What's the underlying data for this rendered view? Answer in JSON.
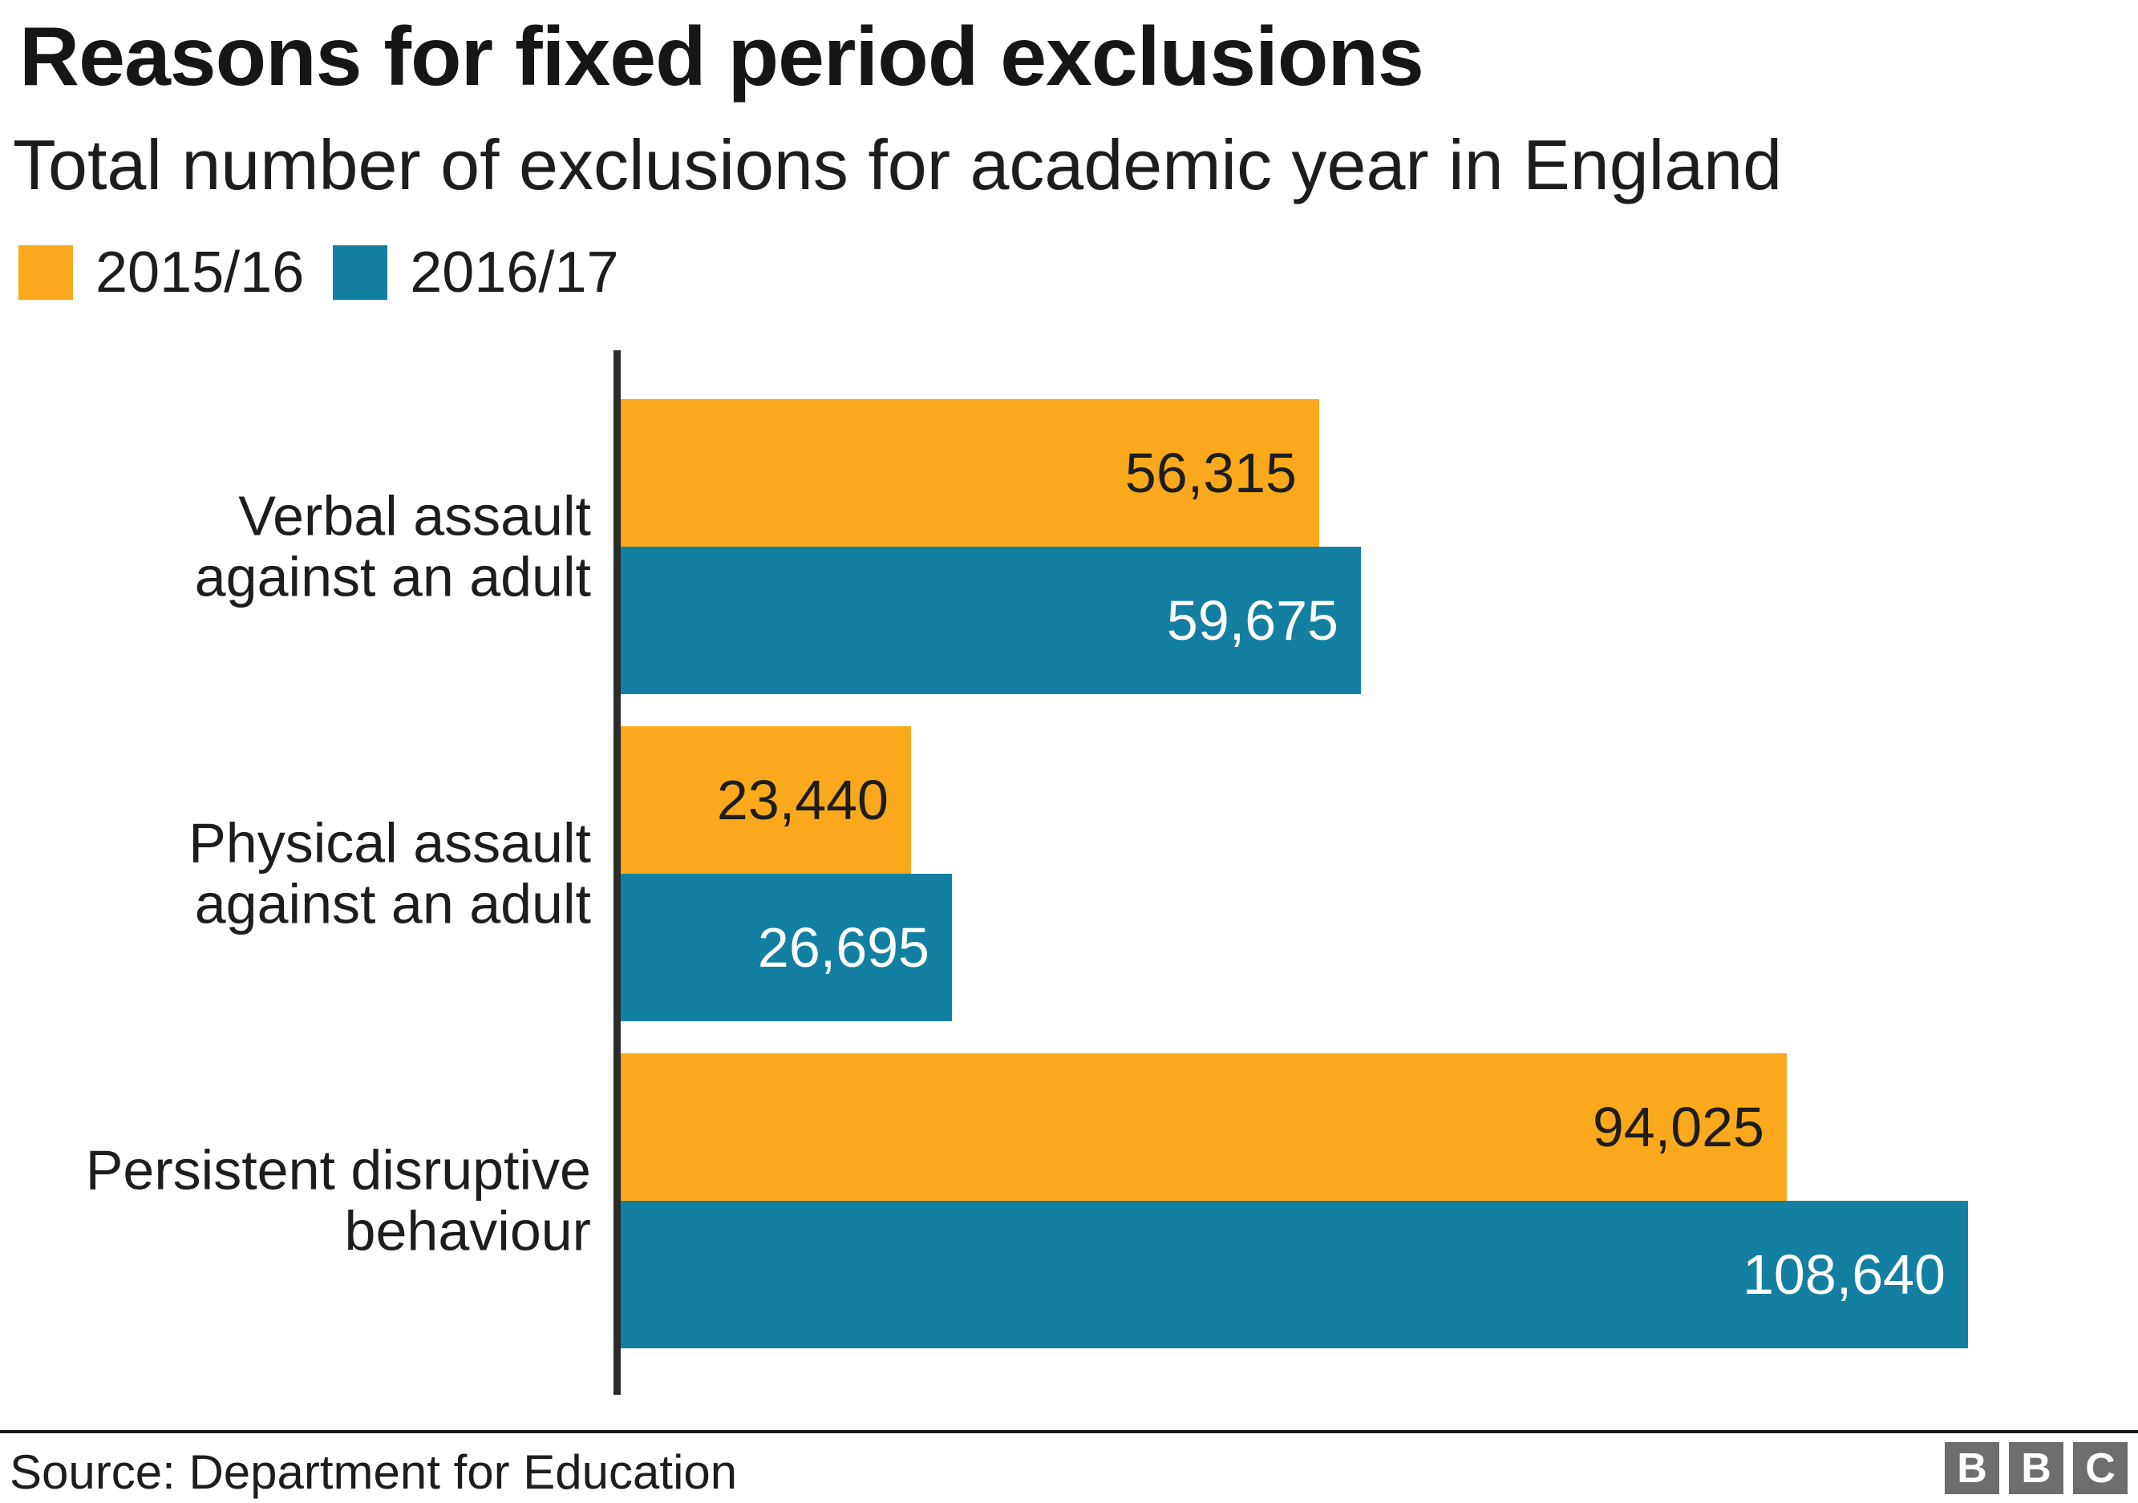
{
  "header": {
    "title": "Reasons for fixed period exclusions",
    "subtitle": "Total number of exclusions for academic year in England"
  },
  "chart_data": {
    "type": "bar",
    "orientation": "horizontal",
    "title": "Reasons for fixed period exclusions",
    "subtitle": "Total number of exclusions for academic year in England",
    "legend_position": "top-left",
    "grid": false,
    "value_labels": "inside-end",
    "xmax": 108640,
    "categories": [
      "Verbal assault\nagainst an adult",
      "Physical assault\nagainst an adult",
      "Persistent disruptive\nbehaviour"
    ],
    "series": [
      {
        "name": "2015/16",
        "color": "#f9a91b",
        "label_color": "#1d1d1d",
        "values": [
          56315,
          23440,
          94025
        ],
        "labels": [
          "56,315",
          "23,440",
          "94,025"
        ]
      },
      {
        "name": "2016/17",
        "color": "#1380a1",
        "label_color": "#ffffff",
        "values": [
          59675,
          26695,
          108640
        ],
        "labels": [
          "59,675",
          "26,695",
          "108,640"
        ]
      }
    ],
    "axis_color": "#2b2b2b"
  },
  "footer": {
    "source": "Source: Department for Education",
    "logo_letters": [
      "B",
      "B",
      "C"
    ]
  }
}
